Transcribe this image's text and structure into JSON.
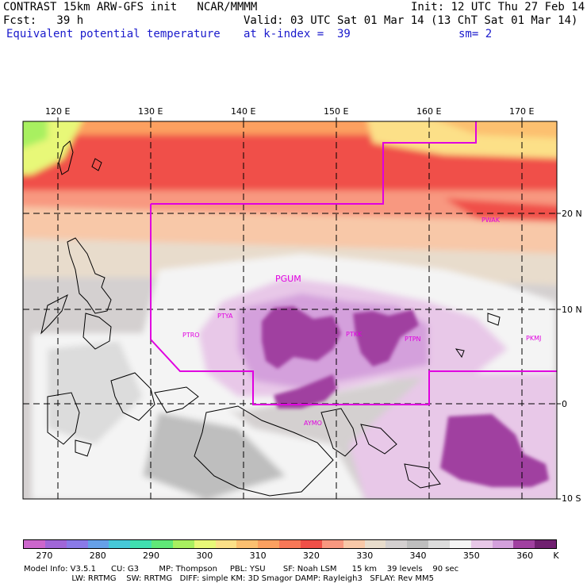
{
  "header": {
    "line1_left": "CONTRAST 15km ARW-GFS init   NCAR/MMMM",
    "line1_right": "Init: 12 UTC Thu 27 Feb 14",
    "fcst": "Fcst:   39 h",
    "valid": "Valid: 03 UTC Sat 01 Mar 14 (13 ChT Sat 01 Mar 14)",
    "field": "Equivalent potential temperature",
    "level": "at k-index =  39",
    "smooth": "sm= 2"
  },
  "map": {
    "lon_labels": [
      "120 E",
      "130 E",
      "140 E",
      "150 E",
      "160 E",
      "170 E"
    ],
    "lat_labels": [
      "20 N",
      "10 N",
      "0",
      "10 S"
    ],
    "stations": [
      "PGUM",
      "PTYA",
      "PTRO",
      "PTKK",
      "PTPN",
      "PKMJ",
      "PWAK",
      "AYMO"
    ],
    "boundary_color": "#e000e0",
    "grid_style": "dashed"
  },
  "colorbar": {
    "colors": [
      "#cc66cc",
      "#a066d8",
      "#8a7ae8",
      "#66a0e8",
      "#46c8d8",
      "#40e0b0",
      "#60e878",
      "#a8f060",
      "#e8f878",
      "#fce088",
      "#fcc070",
      "#fca060",
      "#f87858",
      "#f05048",
      "#f89880",
      "#f8c8a8",
      "#e8dccc",
      "#d4d0d0",
      "#bebebe",
      "#dcdcdc",
      "#f4f4f4",
      "#e8c8e8",
      "#d4a0dc",
      "#a040a0",
      "#702070"
    ],
    "labels": [
      "270",
      "280",
      "290",
      "300",
      "310",
      "320",
      "330",
      "340",
      "350",
      "360"
    ],
    "unit": "K"
  },
  "footer": {
    "line1": "Model Info: V3.5.1      CU: G3        MP: Thompson     PBL: YSU       SF: Noah LSM      15 km    39 levels    90 sec",
    "line2": "                   LW: RRTMG    SW: RRTMG   DIFF: simple KM: 3D Smagor DAMP: Rayleigh3   SFLAY: Rev MM5"
  }
}
